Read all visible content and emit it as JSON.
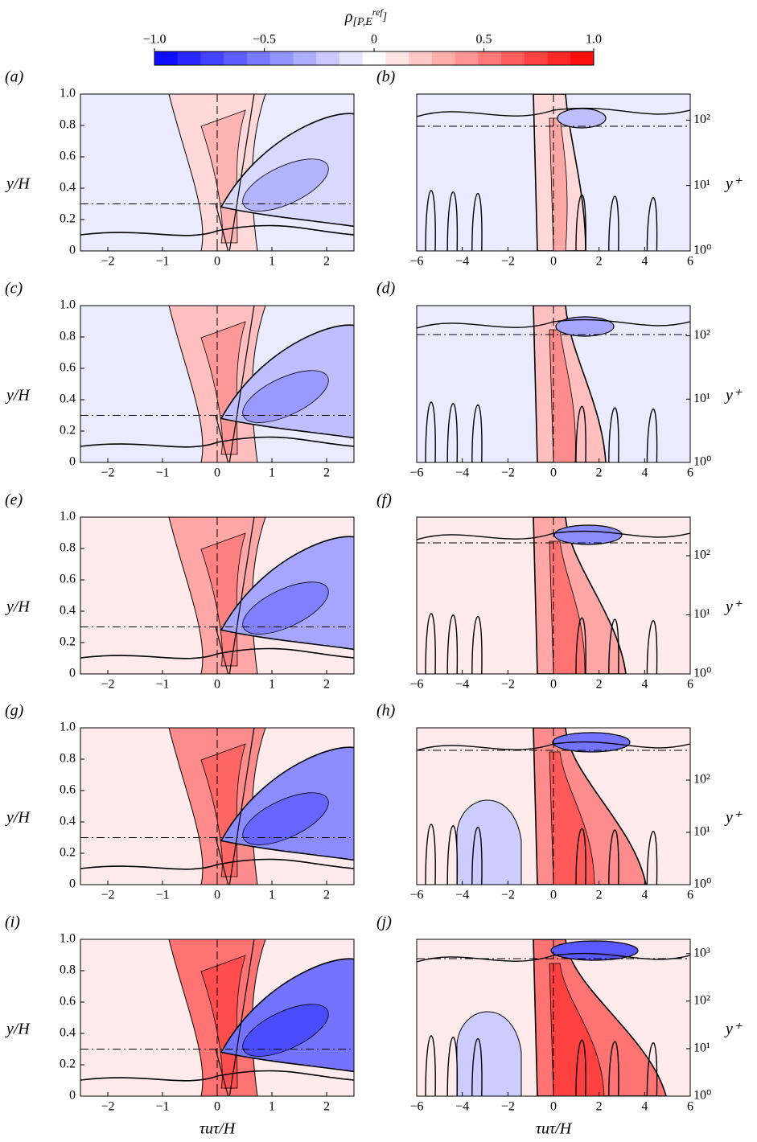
{
  "colorbar": {
    "label_main": "ρ",
    "label_sub": "[P,E",
    "label_sup": "ref",
    "label_end": "]",
    "lim": [
      -1,
      1
    ],
    "ticks": [
      {
        "value": -1,
        "label": "−1.0"
      },
      {
        "value": -0.5,
        "label": "−0.5"
      },
      0,
      0.5,
      {
        "value": 1,
        "label": "1.0"
      }
    ],
    "low_color": "#0000ff",
    "high_color": "#ff0000",
    "levels": 19
  },
  "chart_data": [
    {
      "type": "contour",
      "panel_label": "(a)",
      "xlim": [
        -2.5,
        2.5
      ],
      "xticks": [
        {
          "value": -2,
          "label": "−2"
        },
        {
          "value": -1,
          "label": "−1"
        },
        0,
        1,
        2
      ],
      "ylim": [
        0,
        1
      ],
      "yticks": [
        0,
        0.2,
        0.4,
        0.6,
        0.8,
        {
          "value": 1,
          "label": "1.0"
        }
      ],
      "ylabel": "y/H"
    },
    {
      "type": "contour",
      "panel_label": "(b)",
      "xlim": [
        -6,
        6
      ],
      "xticks": [
        {
          "value": -6,
          "label": "−6"
        },
        {
          "value": -4,
          "label": "−4"
        },
        {
          "value": -2,
          "label": "−2"
        },
        0,
        2,
        4,
        6
      ],
      "ylim": [
        1,
        250
      ],
      "yticks": [
        {
          "value": 1,
          "label": "10⁰"
        },
        {
          "value": 10,
          "label": "10¹"
        },
        {
          "value": 100,
          "label": "10²"
        }
      ],
      "log_y": true,
      "ylabel": "y⁺"
    },
    {
      "type": "contour",
      "panel_label": "(c)",
      "xlim": [
        -2.5,
        2.5
      ],
      "xticks": [
        {
          "value": -2,
          "label": "−2"
        },
        {
          "value": -1,
          "label": "−1"
        },
        0,
        1,
        2
      ],
      "ylim": [
        0,
        1
      ],
      "yticks": [
        0,
        0.2,
        0.4,
        0.6,
        0.8,
        {
          "value": 1,
          "label": "1.0"
        }
      ],
      "ylabel": "y/H"
    },
    {
      "type": "contour",
      "panel_label": "(d)",
      "xlim": [
        -6,
        6
      ],
      "xticks": [
        {
          "value": -6,
          "label": "−6"
        },
        {
          "value": -4,
          "label": "−4"
        },
        {
          "value": -2,
          "label": "−2"
        },
        0,
        2,
        4,
        6
      ],
      "ylim": [
        1,
        300
      ],
      "yticks": [
        {
          "value": 1,
          "label": "10⁰"
        },
        {
          "value": 10,
          "label": "10¹"
        },
        {
          "value": 100,
          "label": "10²"
        }
      ],
      "log_y": true,
      "ylabel": "y⁺"
    },
    {
      "type": "contour",
      "panel_label": "(e)",
      "xlim": [
        -2.5,
        2.5
      ],
      "xticks": [
        {
          "value": -2,
          "label": "−2"
        },
        {
          "value": -1,
          "label": "−1"
        },
        0,
        1,
        2
      ],
      "ylim": [
        0,
        1
      ],
      "yticks": [
        0,
        0.2,
        0.4,
        0.6,
        0.8,
        {
          "value": 1,
          "label": "1.0"
        }
      ],
      "ylabel": "y/H"
    },
    {
      "type": "contour",
      "panel_label": "(f)",
      "xlim": [
        -6,
        6
      ],
      "xticks": [
        {
          "value": -6,
          "label": "−6"
        },
        {
          "value": -4,
          "label": "−4"
        },
        {
          "value": -2,
          "label": "−2"
        },
        0,
        2,
        4,
        6
      ],
      "ylim": [
        1,
        450
      ],
      "yticks": [
        {
          "value": 1,
          "label": "10⁰"
        },
        {
          "value": 10,
          "label": "10¹"
        },
        {
          "value": 100,
          "label": "10²"
        }
      ],
      "log_y": true,
      "ylabel": "y⁺"
    },
    {
      "type": "contour",
      "panel_label": "(g)",
      "xlim": [
        -2.5,
        2.5
      ],
      "xticks": [
        {
          "value": -2,
          "label": "−2"
        },
        {
          "value": -1,
          "label": "−1"
        },
        0,
        1,
        2
      ],
      "ylim": [
        0,
        1
      ],
      "yticks": [
        0,
        0.2,
        0.4,
        0.6,
        0.8,
        {
          "value": 1,
          "label": "1.0"
        }
      ],
      "ylabel": "y/H"
    },
    {
      "type": "contour",
      "panel_label": "(h)",
      "xlim": [
        -6,
        6
      ],
      "xticks": [
        {
          "value": -6,
          "label": "−6"
        },
        {
          "value": -4,
          "label": "−4"
        },
        {
          "value": -2,
          "label": "−2"
        },
        0,
        2,
        4,
        6
      ],
      "ylim": [
        1,
        1000
      ],
      "yticks": [
        {
          "value": 1,
          "label": "10⁰"
        },
        {
          "value": 10,
          "label": "10¹"
        },
        {
          "value": 100,
          "label": "10²"
        }
      ],
      "log_y": true,
      "ylabel": "y⁺"
    },
    {
      "type": "contour",
      "panel_label": "(i)",
      "xlim": [
        -2.5,
        2.5
      ],
      "xticks": [
        {
          "value": -2,
          "label": "−2"
        },
        {
          "value": -1,
          "label": "−1"
        },
        0,
        1,
        2
      ],
      "ylim": [
        0,
        1
      ],
      "yticks": [
        0,
        0.2,
        0.4,
        0.6,
        0.8,
        {
          "value": 1,
          "label": "1.0"
        }
      ],
      "ylabel": "y/H",
      "xlabel": "τuτ/H"
    },
    {
      "type": "contour",
      "panel_label": "(j)",
      "xlim": [
        -6,
        6
      ],
      "xticks": [
        {
          "value": -6,
          "label": "−6"
        },
        {
          "value": -4,
          "label": "−4"
        },
        {
          "value": -2,
          "label": "−2"
        },
        0,
        2,
        4,
        6
      ],
      "ylim": [
        1,
        2000
      ],
      "yticks": [
        {
          "value": 1,
          "label": "10⁰"
        },
        {
          "value": 10,
          "label": "10¹"
        },
        {
          "value": 100,
          "label": "10²"
        },
        {
          "value": 1000,
          "label": "10³"
        }
      ],
      "log_y": true,
      "ylabel": "y⁺",
      "xlabel": "τuτ/H"
    }
  ]
}
